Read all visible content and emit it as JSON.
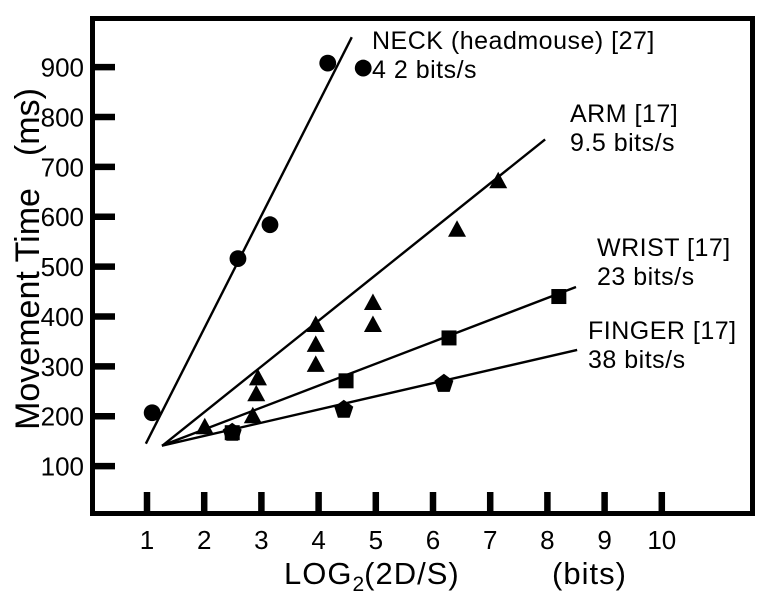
{
  "colors": {
    "ink": "#000000",
    "background": "#ffffff"
  },
  "labels": {
    "y_title_main": "Movement Time",
    "y_title_unit": "(ms)",
    "x_title_log": "LOG",
    "x_title_sub": "2",
    "x_title_rest": "(2D/S)",
    "x_title_unit": "(bits)"
  },
  "chart_data": {
    "type": "scatter",
    "title": "",
    "xlabel": "LOG2(2D/S) (bits)",
    "ylabel": "Movement Time (ms)",
    "xlim": [
      0,
      11.6
    ],
    "ylim": [
      0,
      1000
    ],
    "grid": false,
    "x_ticks": [
      "1",
      "2",
      "3",
      "4",
      "5",
      "6",
      "7",
      "8",
      "9",
      "10"
    ],
    "y_ticks": [
      "100",
      "200",
      "300",
      "400",
      "500",
      "600",
      "700",
      "800",
      "900"
    ],
    "series": [
      {
        "id": "neck",
        "name": "NECK (headmouse) [27]",
        "rate": "4 2 bits/s",
        "marker": "circle",
        "points": [
          [
            1.09,
            207
          ],
          [
            2.59,
            516
          ],
          [
            3.15,
            584
          ],
          [
            4.16,
            908
          ],
          [
            4.78,
            898
          ]
        ],
        "fit_line": {
          "x1": 0.98,
          "y1": 145,
          "x2": 4.58,
          "y2": 960
        }
      },
      {
        "id": "arm",
        "name": "ARM [17]",
        "rate": "9.5 bits/s",
        "marker": "triangle",
        "points": [
          [
            2.01,
            177
          ],
          [
            2.85,
            199
          ],
          [
            2.91,
            243
          ],
          [
            2.94,
            275
          ],
          [
            3.95,
            302
          ],
          [
            3.95,
            342
          ],
          [
            3.95,
            382
          ],
          [
            4.95,
            382
          ],
          [
            4.95,
            426
          ],
          [
            6.42,
            573
          ],
          [
            7.14,
            670
          ]
        ],
        "fit_line": {
          "x1": 1.28,
          "y1": 142,
          "x2": 7.96,
          "y2": 755
        }
      },
      {
        "id": "wrist",
        "name": "WRIST [17]",
        "rate": "23 bits/s",
        "marker": "square",
        "points": [
          [
            2.49,
            167
          ],
          [
            4.48,
            271
          ],
          [
            6.28,
            357
          ],
          [
            8.2,
            440
          ]
        ],
        "fit_line": {
          "x1": 1.26,
          "y1": 141,
          "x2": 8.5,
          "y2": 459
        }
      },
      {
        "id": "finger",
        "name": "FINGER [17]",
        "rate": "38 bits/s",
        "marker": "pentagon",
        "points": [
          [
            2.49,
            167
          ],
          [
            4.44,
            213
          ],
          [
            6.19,
            265
          ]
        ],
        "fit_line": {
          "x1": 1.26,
          "y1": 141,
          "x2": 8.52,
          "y2": 333
        }
      }
    ]
  }
}
